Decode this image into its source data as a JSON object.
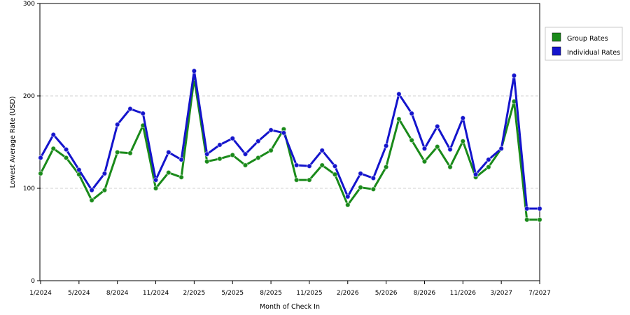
{
  "chart_data": {
    "type": "line",
    "title": "",
    "xlabel": "Month of Check In",
    "ylabel": "Lowest Average Rate (USD)",
    "ylim": [
      0,
      300
    ],
    "yticks": [
      "0",
      "100",
      "200",
      "300"
    ],
    "grid": "horizontal dashed",
    "legend_position": "right",
    "x_tick_labels": [
      "1/2024",
      "5/2024",
      "8/2024",
      "11/2024",
      "2/2025",
      "5/2025",
      "8/2025",
      "11/2025",
      "2/2026",
      "5/2026",
      "8/2026",
      "11/2026",
      "3/2027",
      "7/2027"
    ],
    "x_tick_index": [
      0,
      3,
      6,
      9,
      12,
      15,
      18,
      21,
      24,
      27,
      30,
      33,
      36,
      39
    ],
    "x_count": 40,
    "series": [
      {
        "name": "Group Rates",
        "color": "#1a8a1a",
        "values": [
          116,
          143,
          133,
          115,
          87,
          98,
          139,
          138,
          168,
          100,
          117,
          112,
          219,
          129,
          132,
          136,
          125,
          133,
          141,
          164,
          109,
          109,
          125,
          115,
          82,
          101,
          99,
          123,
          175,
          152,
          129,
          145,
          123,
          151,
          112,
          123,
          143,
          194,
          66,
          66
        ]
      },
      {
        "name": "Individual Rates",
        "color": "#1414cc",
        "values": [
          133,
          158,
          142,
          120,
          98,
          116,
          169,
          186,
          181,
          109,
          139,
          131,
          227,
          137,
          147,
          154,
          137,
          151,
          163,
          160,
          125,
          124,
          141,
          124,
          91,
          116,
          111,
          146,
          202,
          181,
          143,
          167,
          142,
          176,
          115,
          131,
          143,
          222,
          78,
          78
        ]
      }
    ]
  }
}
